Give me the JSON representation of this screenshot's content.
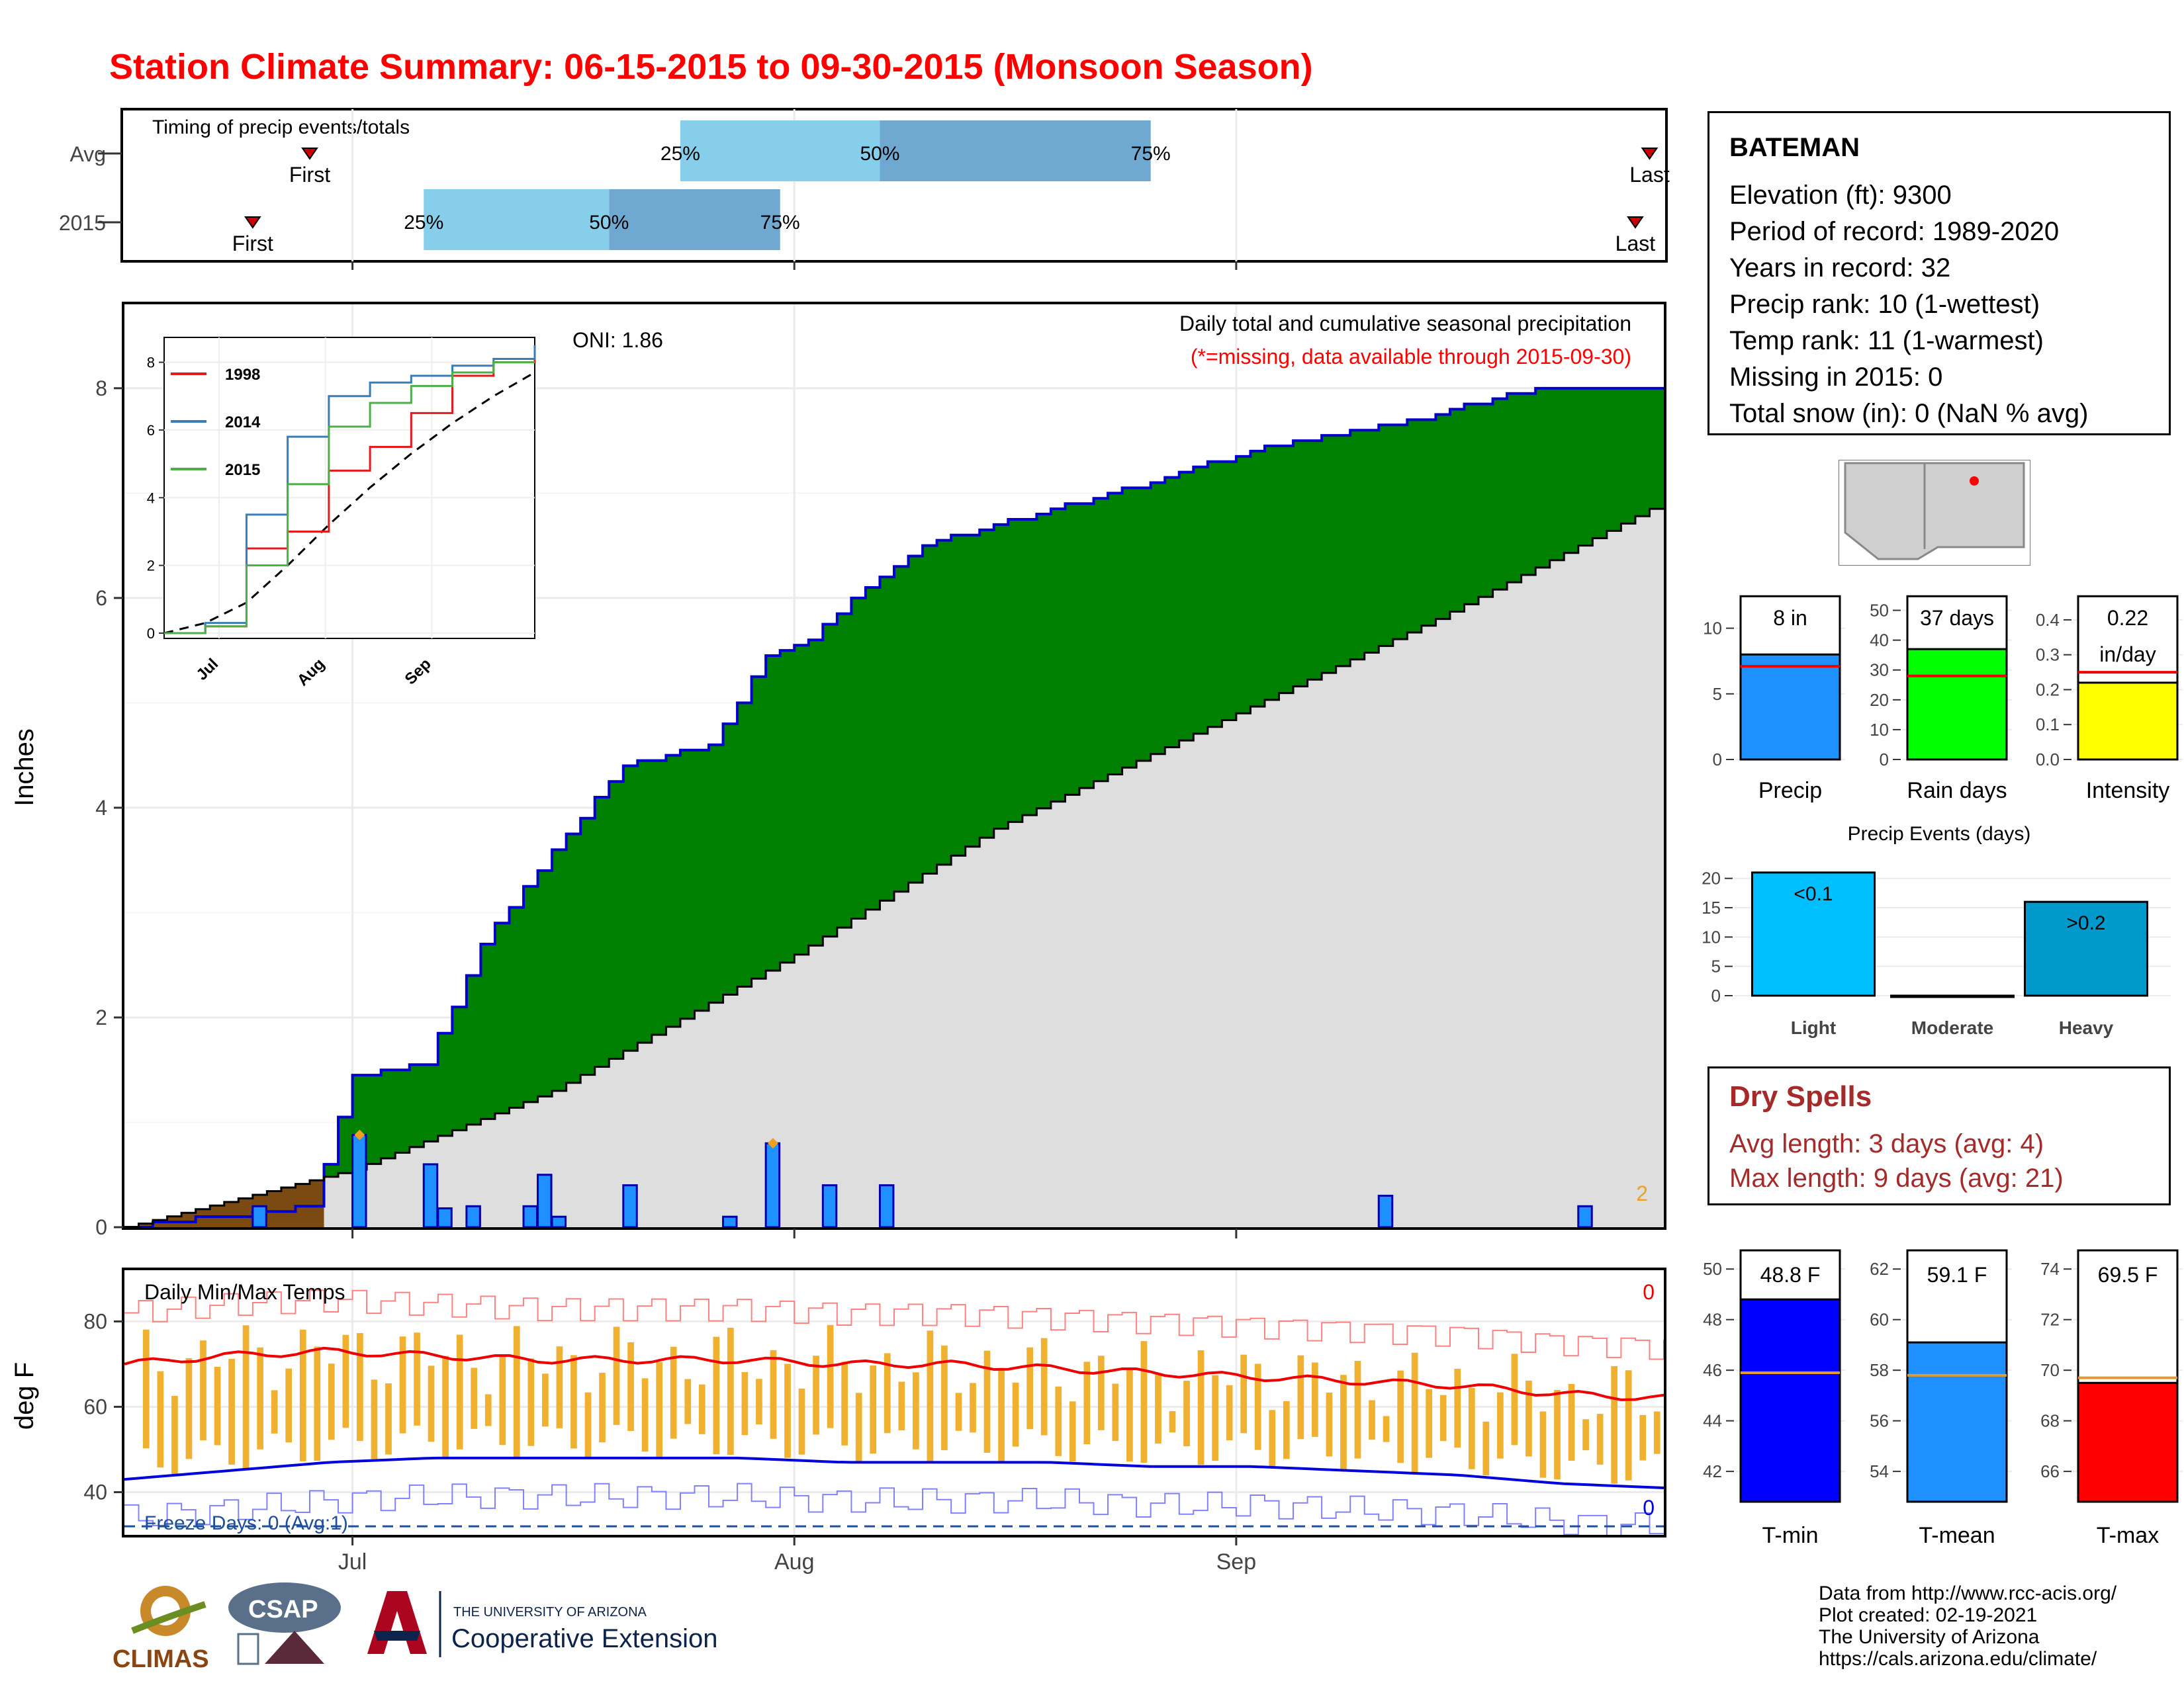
{
  "title": "Station Climate Summary: 06-15-2015 to 09-30-2015 (Monsoon Season)",
  "timing": {
    "label": "Timing of precip events/totals",
    "rows": [
      {
        "name": "Avg",
        "first": "First",
        "last": "Last",
        "p25": "25%",
        "p50": "50%",
        "p75": "75%"
      },
      {
        "name": "2015",
        "first": "First",
        "last": "Last",
        "p25": "25%",
        "p50": "50%",
        "p75": "75%"
      }
    ]
  },
  "station": {
    "name": "BATEMAN",
    "lines": [
      "Elevation (ft): 9300",
      "Period of record: 1989-2020",
      "Years in record: 32",
      "Precip rank: 10 (1-wettest)",
      "Temp rank: 11 (1-warmest)",
      "Missing in 2015: 0",
      "Total snow (in): 0 (NaN % avg)"
    ]
  },
  "precip_panel": {
    "ylabel": "Inches",
    "annotation": "Daily total and cumulative seasonal precipitation",
    "missing_note": "(*=missing, data available through 2015-09-30)",
    "oni": "ONI: 1.86",
    "corner_value": "2",
    "x_ticks": [
      "Jul",
      "Aug",
      "Sep"
    ],
    "y_ticks": [
      "0",
      "2",
      "4",
      "6",
      "8"
    ]
  },
  "inset": {
    "series": [
      {
        "name": "1998",
        "color": "#e41a1c"
      },
      {
        "name": "2014",
        "color": "#377eb8"
      },
      {
        "name": "2015",
        "color": "#4daf4a"
      }
    ],
    "y_ticks": [
      "0",
      "2",
      "4",
      "6",
      "8"
    ],
    "x_ticks": [
      "Jul",
      "Aug",
      "Sep"
    ]
  },
  "temp_panel": {
    "ylabel": "deg F",
    "label": "Daily Min/Max Temps",
    "freeze": "Freeze Days: 0 (Avg:1)",
    "hot_count": "0",
    "freeze_count": "0",
    "y_ticks": [
      "40",
      "60",
      "80"
    ]
  },
  "bars_top": [
    {
      "label": "Precip",
      "value_label": "8 in",
      "ticks": [
        "0",
        "5",
        "10"
      ],
      "color": "#1e90ff"
    },
    {
      "label": "Rain days",
      "value_label": "37 days",
      "ticks": [
        "0",
        "10",
        "20",
        "30",
        "40",
        "50"
      ],
      "color": "#00ff00"
    },
    {
      "label": "Intensity",
      "value_label": "0.22 in/day",
      "value_line1": "0.22",
      "value_line2": "in/day",
      "ticks": [
        "0.0",
        "0.1",
        "0.2",
        "0.3",
        "0.4"
      ],
      "color": "#ffff00"
    }
  ],
  "events": {
    "title": "Precip Events (days)",
    "categories": [
      "Light",
      "Moderate",
      "Heavy"
    ],
    "labels": [
      "<0.1",
      "",
      ">0.2"
    ],
    "ticks": [
      "0",
      "5",
      "10",
      "15",
      "20"
    ]
  },
  "dry_spells": {
    "title": "Dry Spells",
    "avg": "Avg length: 3 days (avg: 4)",
    "max": "Max length: 9 days (avg: 21)"
  },
  "bars_temp": [
    {
      "label": "T-min",
      "value_label": "48.8 F",
      "ticks": [
        "42",
        "44",
        "46",
        "48",
        "50"
      ],
      "color": "#0000ff"
    },
    {
      "label": "T-mean",
      "value_label": "59.1 F",
      "ticks": [
        "54",
        "56",
        "58",
        "60",
        "62"
      ],
      "color": "#1e90ff"
    },
    {
      "label": "T-max",
      "value_label": "69.5 F",
      "ticks": [
        "66",
        "68",
        "70",
        "72",
        "74"
      ],
      "color": "#ff0000"
    }
  ],
  "footer": [
    "Data from http://www.rcc-acis.org/",
    "Plot created: 02-19-2021",
    "The University of Arizona",
    "https://cals.arizona.edu/climate/"
  ],
  "logos": {
    "climas": "CLIMAS",
    "csap": "CSAP",
    "ua_top": "THE UNIVERSITY OF ARIZONA",
    "ua_bottom": "Cooperative Extension"
  },
  "chart_data": [
    {
      "type": "area",
      "title": "Daily total and cumulative seasonal precipitation",
      "ylabel": "Inches",
      "ylim": [
        0,
        8.8
      ],
      "x_range": [
        "2015-06-15",
        "2015-09-30"
      ],
      "series": [
        {
          "name": "2015 cumulative",
          "x": [
            "2015-06-15",
            "2015-06-28",
            "2015-07-01",
            "2015-07-06",
            "2015-07-10",
            "2015-07-15",
            "2015-07-20",
            "2015-07-26",
            "2015-07-30",
            "2015-08-02",
            "2015-08-06",
            "2015-08-10",
            "2015-08-18",
            "2015-08-26",
            "2015-09-03",
            "2015-09-12",
            "2015-09-22",
            "2015-09-30"
          ],
          "values": [
            0,
            0.2,
            1.45,
            1.55,
            2.7,
            3.6,
            4.4,
            4.6,
            5.45,
            5.6,
            6.1,
            6.5,
            6.8,
            7.1,
            7.45,
            7.65,
            8.0,
            8.0
          ]
        },
        {
          "name": "Avg cumulative",
          "x": [
            "2015-06-15",
            "2015-07-01",
            "2015-07-15",
            "2015-08-01",
            "2015-08-15",
            "2015-09-01",
            "2015-09-15",
            "2015-09-30"
          ],
          "values": [
            0,
            0.55,
            1.3,
            2.6,
            3.8,
            4.9,
            5.8,
            6.85
          ]
        },
        {
          "name": "Daily precip",
          "x": [
            "2015-06-24",
            "2015-07-01",
            "2015-07-06",
            "2015-07-07",
            "2015-07-09",
            "2015-07-13",
            "2015-07-14",
            "2015-07-15",
            "2015-07-20",
            "2015-07-27",
            "2015-07-30",
            "2015-08-03",
            "2015-08-07",
            "2015-09-11",
            "2015-09-25"
          ],
          "values": [
            0.2,
            0.88,
            0.6,
            0.18,
            0.2,
            0.2,
            0.5,
            0.1,
            0.4,
            0.1,
            0.8,
            0.4,
            0.4,
            0.3,
            0.2
          ]
        }
      ]
    },
    {
      "type": "line",
      "title": "Inset cumulative precipitation",
      "ylim": [
        0,
        8.5
      ],
      "series": [
        {
          "name": "1998",
          "values": [
            0,
            0.2,
            2.5,
            3,
            4.8,
            5.5,
            6.5,
            7.6,
            8.0,
            8.3
          ]
        },
        {
          "name": "2014",
          "values": [
            0,
            0.3,
            3.5,
            5.8,
            7.0,
            7.4,
            7.6,
            7.9,
            8.1,
            8.5
          ]
        },
        {
          "name": "2015",
          "values": [
            0,
            0.2,
            2.0,
            4.4,
            6.1,
            6.8,
            7.3,
            7.7,
            8.0,
            8.0
          ]
        }
      ]
    },
    {
      "type": "line",
      "title": "Daily Min/Max Temps",
      "ylabel": "deg F",
      "ylim": [
        30,
        90
      ],
      "series": [
        {
          "name": "Avg max",
          "values": [
            70,
            72,
            73,
            72,
            71,
            71,
            71,
            70,
            70,
            69,
            68,
            67,
            66,
            65,
            63,
            62
          ]
        },
        {
          "name": "Avg min",
          "values": [
            43,
            45,
            47,
            48,
            48,
            48,
            48,
            47,
            47,
            47,
            46,
            46,
            45,
            44,
            42,
            41
          ]
        }
      ]
    },
    {
      "type": "bar",
      "categories": [
        "Precip",
        "Rain days",
        "Intensity"
      ],
      "values": [
        8,
        37,
        0.22
      ],
      "averages": [
        7.1,
        28,
        0.25
      ]
    },
    {
      "type": "bar",
      "title": "Precip Events (days)",
      "categories": [
        "Light",
        "Moderate",
        "Heavy"
      ],
      "values": [
        21,
        0,
        16
      ]
    },
    {
      "type": "bar",
      "categories": [
        "T-min",
        "T-mean",
        "T-max"
      ],
      "values": [
        48.8,
        59.1,
        69.5
      ],
      "averages": [
        45.9,
        57.8,
        69.7
      ]
    }
  ]
}
